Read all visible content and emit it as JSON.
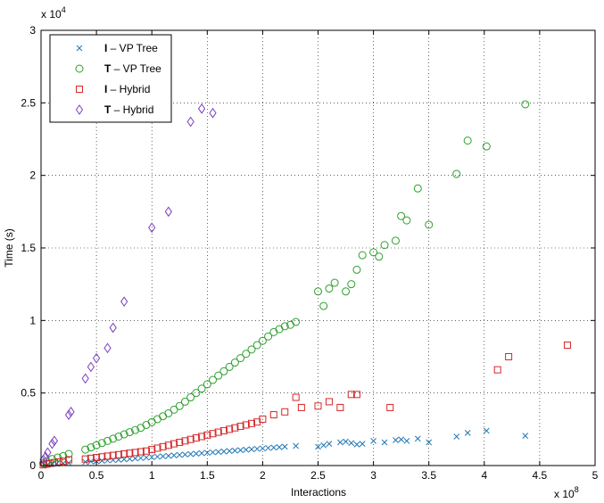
{
  "chart_data": {
    "type": "scatter",
    "xlabel": "Interactions",
    "ylabel": "Time (s)",
    "x_multiplier_label": "x 10",
    "x_multiplier_exp": "8",
    "y_multiplier_label": "x 10",
    "y_multiplier_exp": "4",
    "xlim": [
      0,
      500000000.0
    ],
    "ylim": [
      0,
      30000
    ],
    "x_ticks": [
      0,
      0.5,
      1,
      1.5,
      2,
      2.5,
      3,
      3.5,
      4,
      4.5,
      5
    ],
    "y_ticks": [
      0,
      0.5,
      1,
      1.5,
      2,
      2.5,
      3
    ],
    "x_tick_labels": [
      "0",
      "0.5",
      "1",
      "1.5",
      "2",
      "2.5",
      "3",
      "3.5",
      "4",
      "4.5",
      "5"
    ],
    "y_tick_labels": [
      "0",
      "0.5",
      "1",
      "1.5",
      "2",
      "2.5",
      "3"
    ],
    "grid": true,
    "legend_position": "top-left",
    "series": [
      {
        "bold": "I",
        "rest": " – VP Tree",
        "marker": "x",
        "color": "#1f77b4",
        "points": [
          [
            3000000.0,
            50
          ],
          [
            6000000.0,
            80
          ],
          [
            10000000.0,
            100
          ],
          [
            14000000.0,
            120
          ],
          [
            20000000.0,
            150
          ],
          [
            25000000.0,
            180
          ],
          [
            40000000.0,
            250
          ],
          [
            45000000.0,
            280
          ],
          [
            50000000.0,
            300
          ],
          [
            55000000.0,
            330
          ],
          [
            60000000.0,
            350
          ],
          [
            65000000.0,
            380
          ],
          [
            70000000.0,
            400
          ],
          [
            75000000.0,
            430
          ],
          [
            80000000.0,
            460
          ],
          [
            85000000.0,
            490
          ],
          [
            90000000.0,
            520
          ],
          [
            95000000.0,
            550
          ],
          [
            100000000.0,
            580
          ],
          [
            105000000.0,
            610
          ],
          [
            110000000.0,
            640
          ],
          [
            115000000.0,
            670
          ],
          [
            120000000.0,
            700
          ],
          [
            125000000.0,
            730
          ],
          [
            130000000.0,
            760
          ],
          [
            135000000.0,
            790
          ],
          [
            140000000.0,
            820
          ],
          [
            145000000.0,
            850
          ],
          [
            150000000.0,
            880
          ],
          [
            155000000.0,
            910
          ],
          [
            160000000.0,
            940
          ],
          [
            165000000.0,
            970
          ],
          [
            170000000.0,
            1000
          ],
          [
            175000000.0,
            1030
          ],
          [
            180000000.0,
            1060
          ],
          [
            185000000.0,
            1090
          ],
          [
            190000000.0,
            1120
          ],
          [
            195000000.0,
            1150
          ],
          [
            200000000.0,
            1180
          ],
          [
            205000000.0,
            1210
          ],
          [
            210000000.0,
            1240
          ],
          [
            215000000.0,
            1270
          ],
          [
            220000000.0,
            1300
          ],
          [
            230000000.0,
            1350
          ],
          [
            250000000.0,
            1300
          ],
          [
            255000000.0,
            1400
          ],
          [
            260000000.0,
            1500
          ],
          [
            270000000.0,
            1600
          ],
          [
            275000000.0,
            1650
          ],
          [
            280000000.0,
            1550
          ],
          [
            285000000.0,
            1450
          ],
          [
            290000000.0,
            1500
          ],
          [
            300000000.0,
            1700
          ],
          [
            310000000.0,
            1600
          ],
          [
            320000000.0,
            1750
          ],
          [
            325000000.0,
            1800
          ],
          [
            330000000.0,
            1700
          ],
          [
            340000000.0,
            1850
          ],
          [
            350000000.0,
            1600
          ],
          [
            375000000.0,
            2000
          ],
          [
            385000000.0,
            2250
          ],
          [
            402000000.0,
            2400
          ],
          [
            437000000.0,
            2050
          ]
        ]
      },
      {
        "bold": "T",
        "rest": " – VP Tree",
        "marker": "circle",
        "color": "#2ca02c",
        "points": [
          [
            2000000.0,
            150
          ],
          [
            5000000.0,
            300
          ],
          [
            10000000.0,
            450
          ],
          [
            15000000.0,
            550
          ],
          [
            20000000.0,
            650
          ],
          [
            25000000.0,
            800
          ],
          [
            40000000.0,
            1100
          ],
          [
            45000000.0,
            1250
          ],
          [
            50000000.0,
            1400
          ],
          [
            55000000.0,
            1550
          ],
          [
            60000000.0,
            1700
          ],
          [
            65000000.0,
            1850
          ],
          [
            70000000.0,
            2000
          ],
          [
            75000000.0,
            2150
          ],
          [
            80000000.0,
            2300
          ],
          [
            85000000.0,
            2450
          ],
          [
            90000000.0,
            2600
          ],
          [
            95000000.0,
            2800
          ],
          [
            100000000.0,
            3000
          ],
          [
            105000000.0,
            3200
          ],
          [
            110000000.0,
            3400
          ],
          [
            115000000.0,
            3600
          ],
          [
            120000000.0,
            3850
          ],
          [
            125000000.0,
            4100
          ],
          [
            130000000.0,
            4400
          ],
          [
            135000000.0,
            4700
          ],
          [
            140000000.0,
            5000
          ],
          [
            145000000.0,
            5300
          ],
          [
            150000000.0,
            5600
          ],
          [
            155000000.0,
            5900
          ],
          [
            160000000.0,
            6200
          ],
          [
            165000000.0,
            6500
          ],
          [
            170000000.0,
            6800
          ],
          [
            175000000.0,
            7100
          ],
          [
            180000000.0,
            7400
          ],
          [
            185000000.0,
            7700
          ],
          [
            190000000.0,
            8000
          ],
          [
            195000000.0,
            8300
          ],
          [
            200000000.0,
            8600
          ],
          [
            205000000.0,
            8900
          ],
          [
            210000000.0,
            9200
          ],
          [
            215000000.0,
            9400
          ],
          [
            220000000.0,
            9600
          ],
          [
            225000000.0,
            9700
          ],
          [
            230000000.0,
            9900
          ],
          [
            250000000.0,
            12000
          ],
          [
            255000000.0,
            11000
          ],
          [
            260000000.0,
            12200
          ],
          [
            265000000.0,
            12600
          ],
          [
            275000000.0,
            12000
          ],
          [
            280000000.0,
            12500
          ],
          [
            285000000.0,
            13500
          ],
          [
            290000000.0,
            14500
          ],
          [
            300000000.0,
            14700
          ],
          [
            305000000.0,
            14400
          ],
          [
            310000000.0,
            15200
          ],
          [
            320000000.0,
            15500
          ],
          [
            325000000.0,
            17200
          ],
          [
            330000000.0,
            16900
          ],
          [
            340000000.0,
            19100
          ],
          [
            350000000.0,
            16600
          ],
          [
            375000000.0,
            20100
          ],
          [
            385000000.0,
            22400
          ],
          [
            402000000.0,
            22000
          ],
          [
            437000000.0,
            24900
          ]
        ]
      },
      {
        "bold": "I",
        "rest": " – Hybrid",
        "marker": "square",
        "color": "#d62728",
        "points": [
          [
            2000000.0,
            50
          ],
          [
            5000000.0,
            100
          ],
          [
            8000000.0,
            150
          ],
          [
            12000000.0,
            200
          ],
          [
            16000000.0,
            250
          ],
          [
            20000000.0,
            300
          ],
          [
            25000000.0,
            400
          ],
          [
            40000000.0,
            450
          ],
          [
            45000000.0,
            500
          ],
          [
            50000000.0,
            550
          ],
          [
            55000000.0,
            600
          ],
          [
            60000000.0,
            650
          ],
          [
            65000000.0,
            700
          ],
          [
            70000000.0,
            750
          ],
          [
            75000000.0,
            800
          ],
          [
            80000000.0,
            850
          ],
          [
            85000000.0,
            900
          ],
          [
            90000000.0,
            950
          ],
          [
            95000000.0,
            1000
          ],
          [
            100000000.0,
            1100
          ],
          [
            105000000.0,
            1200
          ],
          [
            110000000.0,
            1300
          ],
          [
            115000000.0,
            1400
          ],
          [
            120000000.0,
            1500
          ],
          [
            125000000.0,
            1600
          ],
          [
            130000000.0,
            1700
          ],
          [
            135000000.0,
            1800
          ],
          [
            140000000.0,
            1900
          ],
          [
            145000000.0,
            2000
          ],
          [
            150000000.0,
            2100
          ],
          [
            155000000.0,
            2200
          ],
          [
            160000000.0,
            2300
          ],
          [
            165000000.0,
            2400
          ],
          [
            170000000.0,
            2500
          ],
          [
            175000000.0,
            2600
          ],
          [
            180000000.0,
            2700
          ],
          [
            185000000.0,
            2800
          ],
          [
            190000000.0,
            2900
          ],
          [
            195000000.0,
            3000
          ],
          [
            200000000.0,
            3200
          ],
          [
            210000000.0,
            3500
          ],
          [
            220000000.0,
            3700
          ],
          [
            230000000.0,
            4700
          ],
          [
            235000000.0,
            4000
          ],
          [
            250000000.0,
            4100
          ],
          [
            260000000.0,
            4400
          ],
          [
            270000000.0,
            4000
          ],
          [
            280000000.0,
            4900
          ],
          [
            285000000.0,
            4900
          ],
          [
            315000000.0,
            4000
          ],
          [
            412000000.0,
            6600
          ],
          [
            422000000.0,
            7500
          ],
          [
            475000000.0,
            8300
          ]
        ]
      },
      {
        "bold": "T",
        "rest": " – Hybrid",
        "marker": "diamond",
        "color": "#7b3fbf",
        "points": [
          [
            2000000.0,
            400
          ],
          [
            4000000.0,
            600
          ],
          [
            6000000.0,
            900
          ],
          [
            10000000.0,
            1500
          ],
          [
            12000000.0,
            1700
          ],
          [
            25000000.0,
            3500
          ],
          [
            27000000.0,
            3700
          ],
          [
            40000000.0,
            6000
          ],
          [
            45000000.0,
            6800
          ],
          [
            50000000.0,
            7400
          ],
          [
            60000000.0,
            8100
          ],
          [
            65000000.0,
            9500
          ],
          [
            75000000.0,
            11300
          ],
          [
            100000000.0,
            16400
          ],
          [
            115000000.0,
            17500
          ],
          [
            135000000.0,
            23700
          ],
          [
            145000000.0,
            24600
          ],
          [
            155000000.0,
            24300
          ]
        ]
      }
    ]
  }
}
